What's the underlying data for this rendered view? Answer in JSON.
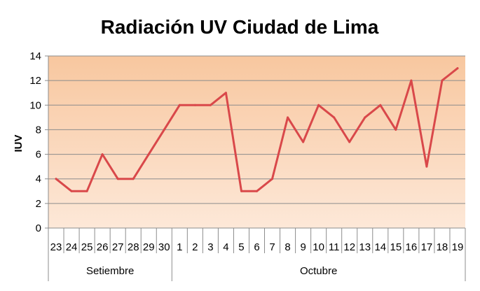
{
  "chart_data": {
    "type": "line",
    "title": "Radiación UV Ciudad de Lima",
    "xlabel": "",
    "ylabel": "IUV",
    "ylim": [
      0,
      14
    ],
    "yticks": [
      0,
      2,
      4,
      6,
      8,
      10,
      12,
      14
    ],
    "grid": true,
    "legend": "none",
    "categories": [
      "23",
      "24",
      "25",
      "26",
      "27",
      "28",
      "29",
      "30",
      "1",
      "2",
      "3",
      "4",
      "5",
      "6",
      "7",
      "8",
      "9",
      "10",
      "11",
      "12",
      "13",
      "14",
      "15",
      "16",
      "17",
      "18",
      "19"
    ],
    "groups": [
      {
        "label": "Setiembre",
        "count": 8
      },
      {
        "label": "Octubre",
        "count": 19
      }
    ],
    "series": [
      {
        "values": [
          4,
          3,
          3,
          6,
          4,
          4,
          6,
          8,
          10,
          10,
          10,
          11,
          3,
          3,
          4,
          9,
          7,
          10,
          9,
          7,
          9,
          10,
          8,
          12,
          5,
          12,
          13
        ],
        "color": "#d9484a"
      }
    ],
    "colors": {
      "plot_background_top": "#f8c79f",
      "plot_background_bottom": "#fde8d8",
      "gridline": "#8c8c8c",
      "axis": "#8c8c8c"
    }
  }
}
